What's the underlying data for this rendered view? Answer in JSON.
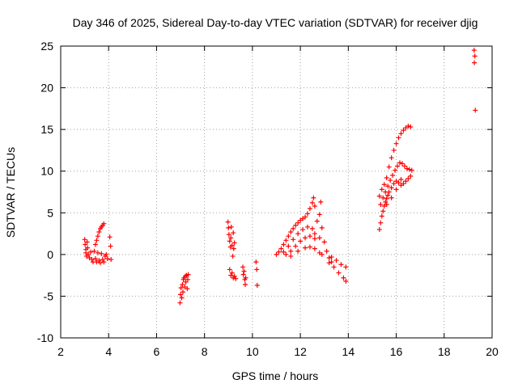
{
  "chart_data": {
    "type": "scatter",
    "title": "Day 346 of 2025, Sidereal Day-to-day VTEC variation (SDTVAR) for receiver djig",
    "xlabel": "GPS time / hours",
    "ylabel": "SDTVAR / TECUs",
    "xlim": [
      2,
      20
    ],
    "ylim": [
      -10,
      25
    ],
    "xticks": [
      "2",
      "4",
      "6",
      "8",
      "10",
      "12",
      "14",
      "16",
      "18",
      "20"
    ],
    "yticks": [
      "-10",
      "-5",
      "0",
      "5",
      "10",
      "15",
      "20",
      "25"
    ],
    "grid": true,
    "marker": "plus",
    "color": "#ff0000",
    "series": [
      {
        "name": "SDTVAR",
        "points": [
          [
            3.0,
            1.8
          ],
          [
            3.02,
            1.2
          ],
          [
            3.05,
            0.6
          ],
          [
            3.05,
            0.2
          ],
          [
            3.08,
            -0.2
          ],
          [
            3.1,
            1.5
          ],
          [
            3.12,
            0.8
          ],
          [
            3.15,
            0.0
          ],
          [
            3.2,
            -0.4
          ],
          [
            3.25,
            0.3
          ],
          [
            3.3,
            -0.6
          ],
          [
            3.35,
            -0.9
          ],
          [
            3.4,
            0.4
          ],
          [
            3.45,
            -0.5
          ],
          [
            3.5,
            -0.9
          ],
          [
            3.55,
            0.2
          ],
          [
            3.6,
            -0.7
          ],
          [
            3.65,
            -1.0
          ],
          [
            3.7,
            0.1
          ],
          [
            3.75,
            -0.6
          ],
          [
            3.8,
            -0.9
          ],
          [
            3.85,
            -0.2
          ],
          [
            3.9,
            0.0
          ],
          [
            3.95,
            -0.5
          ],
          [
            3.45,
            1.2
          ],
          [
            3.5,
            1.7
          ],
          [
            3.55,
            2.2
          ],
          [
            3.6,
            2.7
          ],
          [
            3.65,
            3.1
          ],
          [
            3.7,
            3.3
          ],
          [
            3.75,
            3.5
          ],
          [
            3.8,
            3.7
          ],
          [
            4.05,
            2.1
          ],
          [
            4.08,
            1.0
          ],
          [
            4.1,
            -0.6
          ],
          [
            6.98,
            -5.8
          ],
          [
            7.0,
            -4.8
          ],
          [
            7.02,
            -4.0
          ],
          [
            7.05,
            -5.2
          ],
          [
            7.08,
            -3.6
          ],
          [
            7.1,
            -4.5
          ],
          [
            7.12,
            -3.0
          ],
          [
            7.15,
            -2.8
          ],
          [
            7.18,
            -3.9
          ],
          [
            7.2,
            -2.6
          ],
          [
            7.22,
            -3.3
          ],
          [
            7.25,
            -2.5
          ],
          [
            7.28,
            -4.1
          ],
          [
            7.3,
            -3.0
          ],
          [
            7.32,
            -2.4
          ],
          [
            8.98,
            3.9
          ],
          [
            9.0,
            3.2
          ],
          [
            9.02,
            2.4
          ],
          [
            9.05,
            1.6
          ],
          [
            9.08,
            0.9
          ],
          [
            9.1,
            2.0
          ],
          [
            9.12,
            3.3
          ],
          [
            9.15,
            1.1
          ],
          [
            9.18,
            -0.2
          ],
          [
            9.2,
            2.6
          ],
          [
            9.22,
            0.7
          ],
          [
            9.25,
            1.4
          ],
          [
            9.05,
            -1.8
          ],
          [
            9.1,
            -2.5
          ],
          [
            9.15,
            -2.2
          ],
          [
            9.2,
            -2.8
          ],
          [
            9.25,
            -2.6
          ],
          [
            9.3,
            -2.9
          ],
          [
            9.6,
            -1.5
          ],
          [
            9.62,
            -2.4
          ],
          [
            9.65,
            -2.0
          ],
          [
            9.68,
            -3.0
          ],
          [
            9.7,
            -3.6
          ],
          [
            9.72,
            -2.8
          ],
          [
            10.15,
            -0.9
          ],
          [
            10.18,
            -1.8
          ],
          [
            10.2,
            -3.7
          ],
          [
            11.0,
            0.0
          ],
          [
            11.1,
            0.3
          ],
          [
            11.2,
            0.7
          ],
          [
            11.3,
            1.2
          ],
          [
            11.4,
            1.7
          ],
          [
            11.5,
            2.2
          ],
          [
            11.6,
            2.7
          ],
          [
            11.7,
            3.1
          ],
          [
            11.8,
            3.5
          ],
          [
            11.9,
            3.8
          ],
          [
            12.0,
            4.1
          ],
          [
            12.1,
            4.3
          ],
          [
            12.2,
            4.5
          ],
          [
            12.3,
            4.9
          ],
          [
            12.4,
            5.5
          ],
          [
            12.5,
            6.2
          ],
          [
            12.55,
            6.8
          ],
          [
            11.3,
            0.3
          ],
          [
            11.5,
            1.0
          ],
          [
            11.7,
            1.8
          ],
          [
            11.9,
            2.5
          ],
          [
            12.1,
            3.0
          ],
          [
            12.3,
            3.3
          ],
          [
            12.5,
            3.1
          ],
          [
            12.6,
            2.5
          ],
          [
            11.4,
            0.0
          ],
          [
            11.6,
            0.4
          ],
          [
            11.8,
            1.0
          ],
          [
            12.0,
            1.6
          ],
          [
            12.2,
            2.0
          ],
          [
            12.4,
            2.2
          ],
          [
            12.6,
            1.9
          ],
          [
            11.6,
            -0.2
          ],
          [
            11.9,
            0.4
          ],
          [
            12.2,
            0.8
          ],
          [
            12.4,
            0.9
          ],
          [
            12.6,
            0.7
          ],
          [
            12.8,
            0.2
          ],
          [
            12.6,
            5.8
          ],
          [
            12.7,
            4.0
          ],
          [
            12.8,
            2.0
          ],
          [
            12.9,
            0.0
          ],
          [
            12.85,
            6.3
          ],
          [
            12.8,
            4.8
          ],
          [
            12.9,
            3.2
          ],
          [
            13.0,
            1.5
          ],
          [
            13.1,
            0.4
          ],
          [
            13.2,
            -0.4
          ],
          [
            13.3,
            -0.9
          ],
          [
            13.2,
            -1.0
          ],
          [
            13.4,
            -1.5
          ],
          [
            13.6,
            -2.2
          ],
          [
            13.8,
            -2.8
          ],
          [
            13.9,
            -3.2
          ],
          [
            13.3,
            -0.3
          ],
          [
            13.5,
            -0.7
          ],
          [
            13.7,
            -1.2
          ],
          [
            13.9,
            -1.5
          ],
          [
            15.3,
            3.0
          ],
          [
            15.35,
            3.8
          ],
          [
            15.4,
            4.6
          ],
          [
            15.45,
            5.2
          ],
          [
            15.5,
            5.8
          ],
          [
            15.55,
            6.3
          ],
          [
            15.6,
            6.7
          ],
          [
            15.65,
            7.1
          ],
          [
            15.7,
            7.5
          ],
          [
            15.8,
            8.0
          ],
          [
            15.9,
            8.5
          ],
          [
            16.0,
            8.8
          ],
          [
            16.1,
            8.6
          ],
          [
            16.2,
            8.3
          ],
          [
            16.3,
            8.5
          ],
          [
            16.4,
            8.8
          ],
          [
            16.5,
            9.1
          ],
          [
            16.6,
            9.4
          ],
          [
            15.35,
            6.0
          ],
          [
            15.45,
            6.8
          ],
          [
            15.55,
            7.5
          ],
          [
            15.65,
            8.2
          ],
          [
            15.75,
            8.9
          ],
          [
            15.85,
            9.5
          ],
          [
            15.95,
            10.1
          ],
          [
            16.05,
            10.6
          ],
          [
            16.15,
            11.0
          ],
          [
            16.25,
            10.9
          ],
          [
            16.35,
            10.6
          ],
          [
            16.45,
            10.3
          ],
          [
            16.55,
            10.2
          ],
          [
            16.65,
            10.1
          ],
          [
            15.4,
            7.8
          ],
          [
            15.5,
            8.4
          ],
          [
            15.6,
            9.2
          ],
          [
            15.7,
            10.5
          ],
          [
            15.8,
            11.6
          ],
          [
            15.9,
            12.5
          ],
          [
            16.0,
            13.3
          ],
          [
            16.1,
            14.0
          ],
          [
            16.2,
            14.5
          ],
          [
            16.3,
            14.9
          ],
          [
            16.4,
            15.2
          ],
          [
            16.5,
            15.4
          ],
          [
            16.6,
            15.3
          ],
          [
            15.3,
            7.0
          ],
          [
            15.6,
            6.0
          ],
          [
            15.8,
            6.8
          ],
          [
            16.0,
            7.8
          ],
          [
            16.2,
            9.0
          ],
          [
            19.25,
            24.5
          ],
          [
            19.28,
            23.8
          ],
          [
            19.26,
            23.0
          ],
          [
            19.3,
            17.3
          ]
        ]
      }
    ]
  }
}
